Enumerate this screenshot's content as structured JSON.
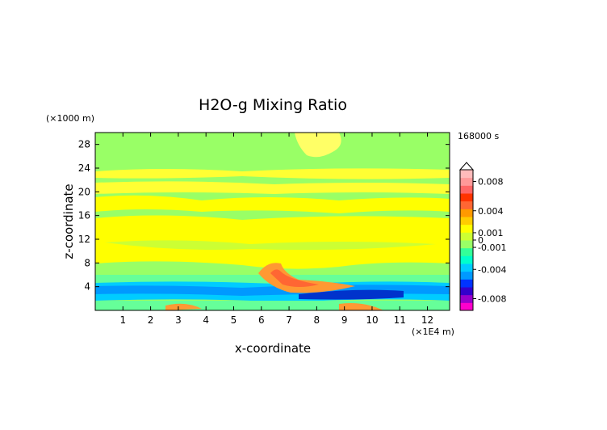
{
  "chart_data": {
    "type": "heatmap",
    "title": "H2O-g Mixing Ratio",
    "xlabel": "x-coordinate",
    "ylabel": "z-coordinate",
    "x_unit": "(×1E4 m)",
    "y_unit": "(×1000 m)",
    "time_label": "168000 s",
    "xlim": [
      0,
      12.8
    ],
    "ylim": [
      0,
      30
    ],
    "x_ticks": [
      "1",
      "2",
      "3",
      "4",
      "5",
      "6",
      "7",
      "8",
      "9",
      "10",
      "11",
      "12"
    ],
    "y_ticks": [
      "4",
      "8",
      "12",
      "16",
      "20",
      "24",
      "28"
    ],
    "colorbar": {
      "range": [
        -0.0096,
        0.0096
      ],
      "tick_labels": [
        "0.008",
        "0.004",
        "0.001",
        "0",
        "-0.001",
        "-0.004",
        "-0.008"
      ],
      "tick_values": [
        0.008,
        0.004,
        0.001,
        0,
        -0.001,
        -0.004,
        -0.008
      ],
      "colors": [
        "#ff00cc",
        "#9900cc",
        "#3300cc",
        "#0033ff",
        "#0099ff",
        "#00ccff",
        "#00ffcc",
        "#33ff99",
        "#99ff66",
        "#ccff33",
        "#ffff00",
        "#ffcc00",
        "#ff9900",
        "#ff6633",
        "#ff3300",
        "#ff6666",
        "#ff9999",
        "#ffbbbb"
      ]
    },
    "field": {
      "description_bands_z_km": [
        {
          "z": [
            0,
            1.5
          ],
          "level": "mixed-negative"
        },
        {
          "z": [
            1.5,
            4.5
          ],
          "level": "-0.002 to -0.001"
        },
        {
          "z": [
            4.5,
            7
          ],
          "level": "near 0"
        },
        {
          "z": [
            7,
            18
          ],
          "level": "0 to 0.001"
        },
        {
          "z": [
            18,
            30
          ],
          "level": "near 0"
        }
      ]
    }
  }
}
